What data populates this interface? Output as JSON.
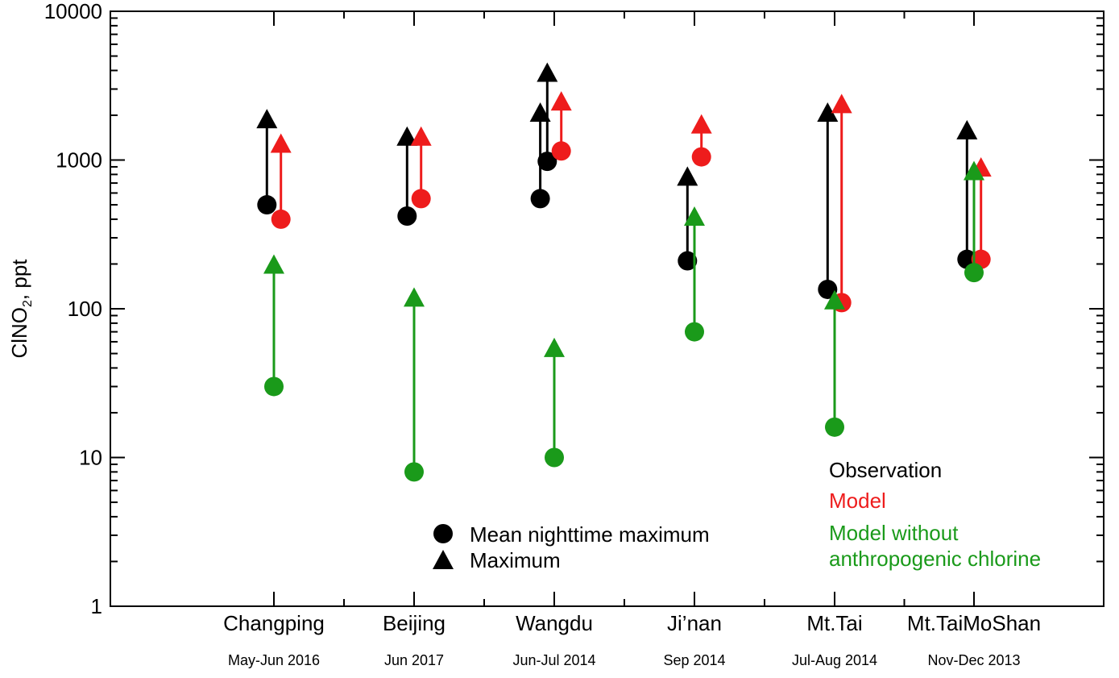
{
  "chart_data": {
    "type": "scatter",
    "title": "",
    "ylabel_main": "ClNO",
    "ylabel_sub": "2",
    "ylabel_tail": ", ppt",
    "yscale": "log",
    "ylim": [
      1,
      10000
    ],
    "yticks": [
      {
        "value": 1,
        "label": "1"
      },
      {
        "value": 10,
        "label": "10"
      },
      {
        "value": 100,
        "label": "100"
      },
      {
        "value": 1000,
        "label": "1000"
      },
      {
        "value": 10000,
        "label": "10000"
      }
    ],
    "categories": [
      {
        "name": "Changping",
        "period": "May-Jun 2016"
      },
      {
        "name": "Beijing",
        "period": "Jun 2017"
      },
      {
        "name": "Wangdu",
        "period": "Jun-Jul 2014"
      },
      {
        "name": "Ji’nan",
        "period": "Sep 2014"
      },
      {
        "name": "Mt.Tai",
        "period": "Jul-Aug 2014"
      },
      {
        "name": "Mt.TaiMoShan",
        "period": "Nov-Dec 2013"
      }
    ],
    "series": [
      {
        "name": "Observation",
        "color": "#000000",
        "points": [
          {
            "category": 0,
            "offset": -0.05,
            "mean_nighttime_max": 500,
            "maximum": 1900
          },
          {
            "category": 1,
            "offset": -0.05,
            "mean_nighttime_max": 420,
            "maximum": 1450
          },
          {
            "category": 2,
            "offset": -0.1,
            "mean_nighttime_max": 550,
            "maximum": 2100
          },
          {
            "category": 2,
            "offset": -0.05,
            "mean_nighttime_max": 980,
            "maximum": 3900
          },
          {
            "category": 3,
            "offset": -0.05,
            "mean_nighttime_max": 210,
            "maximum": 780
          },
          {
            "category": 4,
            "offset": -0.05,
            "mean_nighttime_max": 135,
            "maximum": 2100
          },
          {
            "category": 5,
            "offset": -0.05,
            "mean_nighttime_max": 215,
            "maximum": 1600
          }
        ]
      },
      {
        "name": "Model",
        "color": "#ee1c1c",
        "points": [
          {
            "category": 0,
            "offset": 0.05,
            "mean_nighttime_max": 400,
            "maximum": 1300
          },
          {
            "category": 1,
            "offset": 0.05,
            "mean_nighttime_max": 550,
            "maximum": 1450
          },
          {
            "category": 2,
            "offset": 0.05,
            "mean_nighttime_max": 1150,
            "maximum": 2500
          },
          {
            "category": 3,
            "offset": 0.05,
            "mean_nighttime_max": 1050,
            "maximum": 1750
          },
          {
            "category": 4,
            "offset": 0.05,
            "mean_nighttime_max": 110,
            "maximum": 2400
          },
          {
            "category": 5,
            "offset": 0.05,
            "mean_nighttime_max": 215,
            "maximum": 900
          }
        ]
      },
      {
        "name": "Model without anthropogenic chlorine",
        "color": "#1a9a1a",
        "points": [
          {
            "category": 0,
            "offset": 0,
            "mean_nighttime_max": 30,
            "maximum": 200
          },
          {
            "category": 1,
            "offset": 0,
            "mean_nighttime_max": 8,
            "maximum": 120
          },
          {
            "category": 2,
            "offset": 0,
            "mean_nighttime_max": 10,
            "maximum": 55
          },
          {
            "category": 3,
            "offset": 0,
            "mean_nighttime_max": 70,
            "maximum": 420
          },
          {
            "category": 4,
            "offset": 0,
            "mean_nighttime_max": 16,
            "maximum": 115
          },
          {
            "category": 5,
            "offset": 0,
            "mean_nighttime_max": 175,
            "maximum": 850
          }
        ]
      }
    ],
    "marker_legend": [
      {
        "symbol": "circle",
        "label": "Mean nighttime maximum"
      },
      {
        "symbol": "triangle",
        "label": "Maximum"
      }
    ],
    "color_legend": [
      {
        "label": "Observation",
        "color": "#000000"
      },
      {
        "label": "Model",
        "color": "#ee1c1c"
      },
      {
        "label": "Model without",
        "color": "#1a9a1a"
      },
      {
        "label": "anthropogenic chlorine",
        "color": "#1a9a1a"
      }
    ],
    "legend_placement": "bottom-right",
    "grid": false
  }
}
